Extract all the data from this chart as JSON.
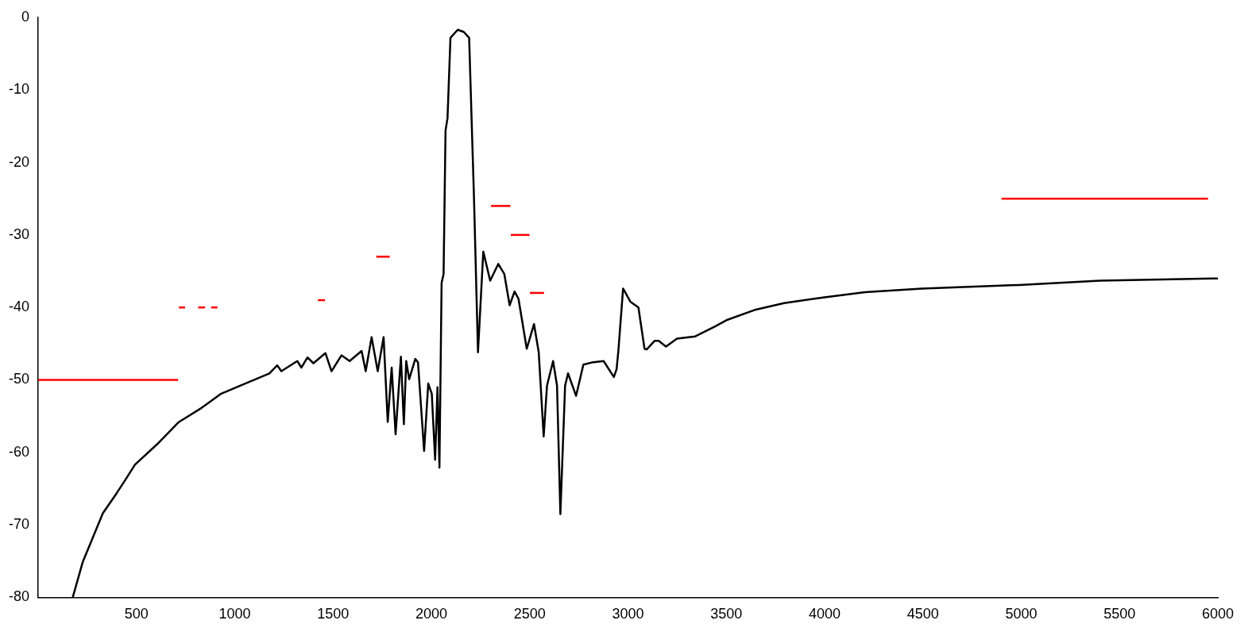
{
  "chart_data": {
    "type": "line",
    "xlim": [
      0,
      6000
    ],
    "ylim": [
      -80,
      0
    ],
    "xticks": [
      500,
      1000,
      1500,
      2000,
      2500,
      3000,
      3500,
      4000,
      4500,
      5000,
      5500,
      6000
    ],
    "yticks": [
      -80,
      -70,
      -60,
      -50,
      -40,
      -30,
      -20,
      -10,
      0
    ],
    "marker": "none",
    "line_style": "solid",
    "legend": false,
    "series": [
      {
        "color": "#000000",
        "x": [
          176,
          227,
          329,
          400,
          441,
          492,
          604,
          716,
          829,
          931,
          1053,
          1176,
          1216,
          1237,
          1318,
          1339,
          1370,
          1400,
          1461,
          1492,
          1543,
          1584,
          1645,
          1666,
          1696,
          1727,
          1757,
          1778,
          1798,
          1818,
          1845,
          1860,
          1872,
          1887,
          1918,
          1932,
          1963,
          1984,
          2002,
          2019,
          2031,
          2041,
          2052,
          2062,
          2072,
          2082,
          2097,
          2134,
          2165,
          2192,
          2217,
          2237,
          2264,
          2299,
          2340,
          2371,
          2398,
          2423,
          2443,
          2485,
          2522,
          2546,
          2571,
          2588,
          2619,
          2639,
          2656,
          2680,
          2695,
          2736,
          2773,
          2815,
          2876,
          2928,
          2942,
          2951,
          2975,
          3012,
          3053,
          3084,
          3095,
          3136,
          3156,
          3193,
          3249,
          3342,
          3445,
          3506,
          3650,
          3794,
          3999,
          4205,
          4494,
          4988,
          5400,
          6000
        ],
        "values": [
          -80,
          -75.1,
          -68.4,
          -65.6,
          -63.9,
          -61.7,
          -58.9,
          -55.8,
          -53.9,
          -51.9,
          -50.5,
          -49.1,
          -48,
          -48.8,
          -47.4,
          -48.3,
          -46.9,
          -47.7,
          -46.3,
          -48.8,
          -46.6,
          -47.4,
          -46,
          -48.8,
          -44.1,
          -48.8,
          -44.1,
          -55.8,
          -48.3,
          -57.5,
          -46.8,
          -56.1,
          -47.4,
          -49.9,
          -47.1,
          -47.6,
          -59.8,
          -50.5,
          -51.9,
          -61,
          -51,
          -62.1,
          -36.6,
          -35.4,
          -15.6,
          -13.9,
          -2.8,
          -1.7,
          -2,
          -2.8,
          -25.2,
          -46.2,
          -32.3,
          -36.3,
          -34,
          -35.4,
          -39.7,
          -37.8,
          -38.8,
          -45.7,
          -42.3,
          -46.2,
          -57.8,
          -50.8,
          -47.4,
          -50.8,
          -68.5,
          -50.8,
          -49.1,
          -52.2,
          -47.9,
          -47.6,
          -47.4,
          -49.6,
          -48.5,
          -46,
          -37.4,
          -39.2,
          -40,
          -45.7,
          -45.8,
          -44.6,
          -44.6,
          -45.4,
          -44.3,
          -44,
          -42.6,
          -41.7,
          -40.3,
          -39.4,
          -38.6,
          -37.9,
          -37.4,
          -36.9,
          -36.3,
          -36
        ]
      },
      {
        "color": "#ff0000",
        "x": [
          0,
          712
        ],
        "values": [
          -50,
          -50
        ]
      },
      {
        "color": "#ff0000",
        "x": [
          716,
          747
        ],
        "values": [
          -40,
          -40
        ]
      },
      {
        "color": "#ff0000",
        "x": [
          814,
          849
        ],
        "values": [
          -40,
          -40
        ]
      },
      {
        "color": "#ff0000",
        "x": [
          880,
          912
        ],
        "values": [
          -40,
          -40
        ]
      },
      {
        "color": "#ff0000",
        "x": [
          1423,
          1459
        ],
        "values": [
          -39,
          -39
        ]
      },
      {
        "color": "#ff0000",
        "x": [
          1720,
          1788
        ],
        "values": [
          -33,
          -33
        ]
      },
      {
        "color": "#ff0000",
        "x": [
          2303,
          2402
        ],
        "values": [
          -26,
          -26
        ]
      },
      {
        "color": "#ff0000",
        "x": [
          2404,
          2499
        ],
        "values": [
          -30,
          -30
        ]
      },
      {
        "color": "#ff0000",
        "x": [
          2501,
          2573
        ],
        "values": [
          -38,
          -38
        ]
      },
      {
        "color": "#ff0000",
        "x": [
          4900,
          5950
        ],
        "values": [
          -25,
          -25
        ]
      }
    ]
  }
}
